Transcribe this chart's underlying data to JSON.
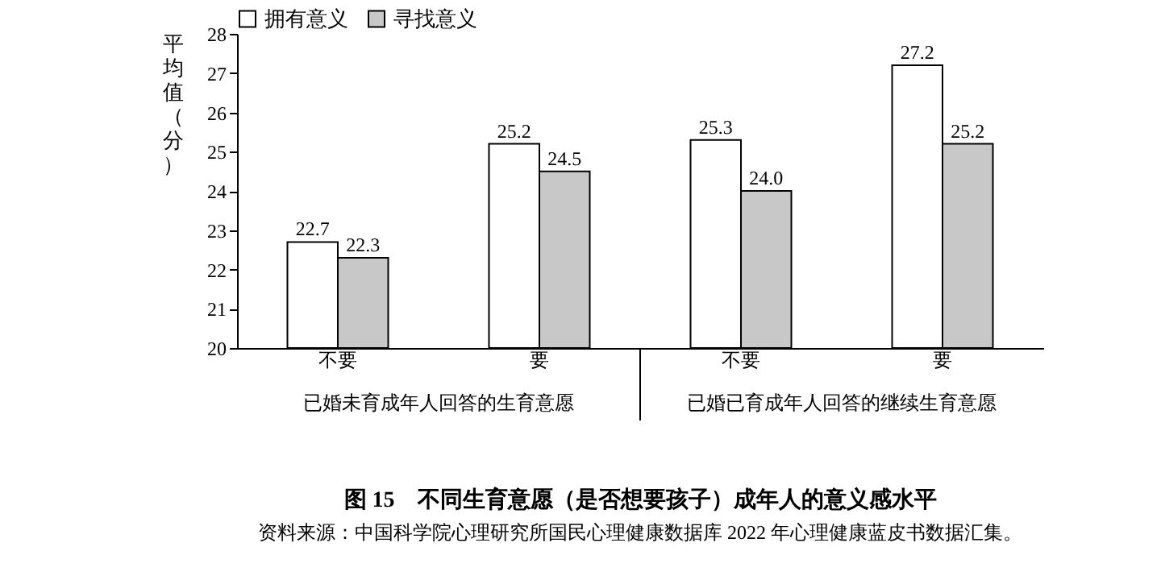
{
  "chart_data": {
    "type": "bar",
    "title": "图 15　不同生育意愿（是否想要孩子）成年人的意义感水平",
    "ylabel": "平均值（分）",
    "categories": [
      "不要",
      "要",
      "不要",
      "要"
    ],
    "series": [
      {
        "name": "拥有意义",
        "color": "#ffffff",
        "values": [
          22.7,
          25.2,
          25.3,
          27.2
        ],
        "value_labels": [
          "22.7",
          "25.2",
          "25.3",
          "27.2"
        ]
      },
      {
        "name": "寻找意义",
        "color": "#c8c8c8",
        "values": [
          22.3,
          24.5,
          24.0,
          25.2
        ],
        "value_labels": [
          "22.3",
          "24.5",
          "24.0",
          "25.2"
        ]
      }
    ],
    "ylim": [
      20,
      28
    ],
    "yticks": [
      20,
      21,
      22,
      23,
      24,
      25,
      26,
      27,
      28
    ],
    "grid": false,
    "legend": "top",
    "annotations": [
      "已婚未育成年人回答的生育意愿",
      "已婚已育成年人回答的继续生育意愿",
      "资料来源：中国科学院心理研究所国民心理健康数据库 2022 年心理健康蓝皮书数据汇集。"
    ]
  }
}
